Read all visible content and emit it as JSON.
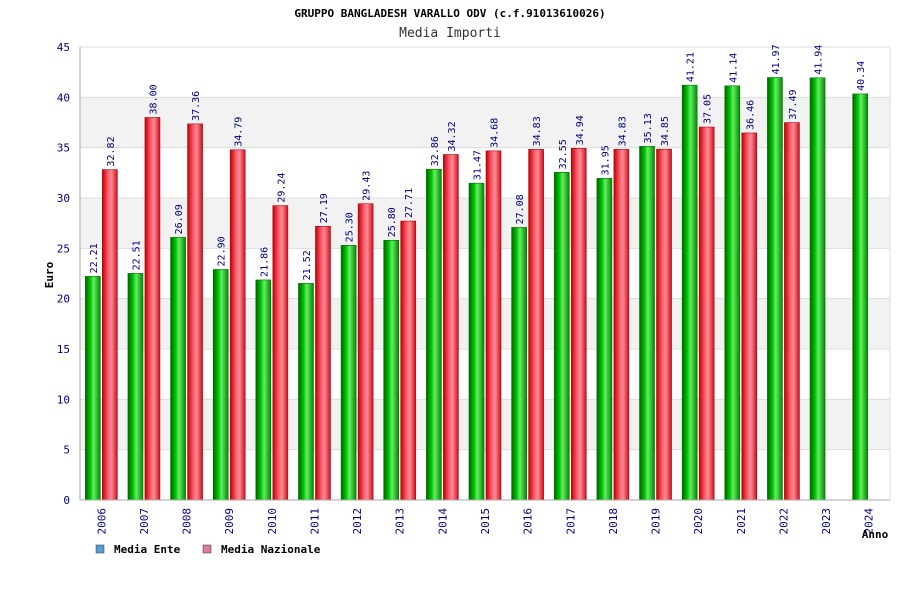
{
  "chart_data": {
    "type": "bar",
    "title": "GRUPPO BANGLADESH VARALLO ODV (c.f.91013610026)",
    "subtitle": "Media Importi",
    "xlabel": "Anno",
    "ylabel": "Euro",
    "ylim": [
      0,
      45
    ],
    "yticks": [
      0,
      5,
      10,
      15,
      20,
      25,
      30,
      35,
      40,
      45
    ],
    "grid": true,
    "legend_position": "bottom-left",
    "categories": [
      "2006",
      "2007",
      "2008",
      "2009",
      "2010",
      "2011",
      "2012",
      "2013",
      "2014",
      "2015",
      "2016",
      "2017",
      "2018",
      "2019",
      "2020",
      "2021",
      "2022",
      "2023",
      "2024"
    ],
    "series": [
      {
        "name": "Media Ente",
        "legend_color": "#5b9bd5",
        "bar_color": "#00b000",
        "values": [
          22.21,
          22.51,
          26.09,
          22.9,
          21.86,
          21.52,
          25.3,
          25.8,
          32.86,
          31.47,
          27.08,
          32.55,
          31.95,
          35.13,
          41.21,
          41.14,
          41.97,
          41.94,
          40.34
        ],
        "labels": [
          "22.21",
          "22.51",
          "26.09",
          "22.90",
          "21.86",
          "21.52",
          "25.30",
          "25.80",
          "32.86",
          "31.47",
          "27.08",
          "32.55",
          "31.95",
          "35.13",
          "41.21",
          "41.14",
          "41.97",
          "41.94",
          "40.34"
        ]
      },
      {
        "name": "Media Nazionale",
        "legend_color": "#e07aa0",
        "bar_color": "#e8202a",
        "values": [
          32.82,
          38.0,
          37.36,
          34.79,
          29.24,
          27.19,
          29.43,
          27.71,
          34.32,
          34.68,
          34.83,
          34.94,
          34.83,
          34.85,
          37.05,
          36.46,
          37.49,
          null,
          null
        ],
        "labels": [
          "32.82",
          "38.00",
          "37.36",
          "34.79",
          "29.24",
          "27.19",
          "29.43",
          "27.71",
          "34.32",
          "34.68",
          "34.83",
          "34.94",
          "34.83",
          "34.85",
          "37.05",
          "36.46",
          "37.49",
          "",
          ""
        ]
      }
    ]
  }
}
